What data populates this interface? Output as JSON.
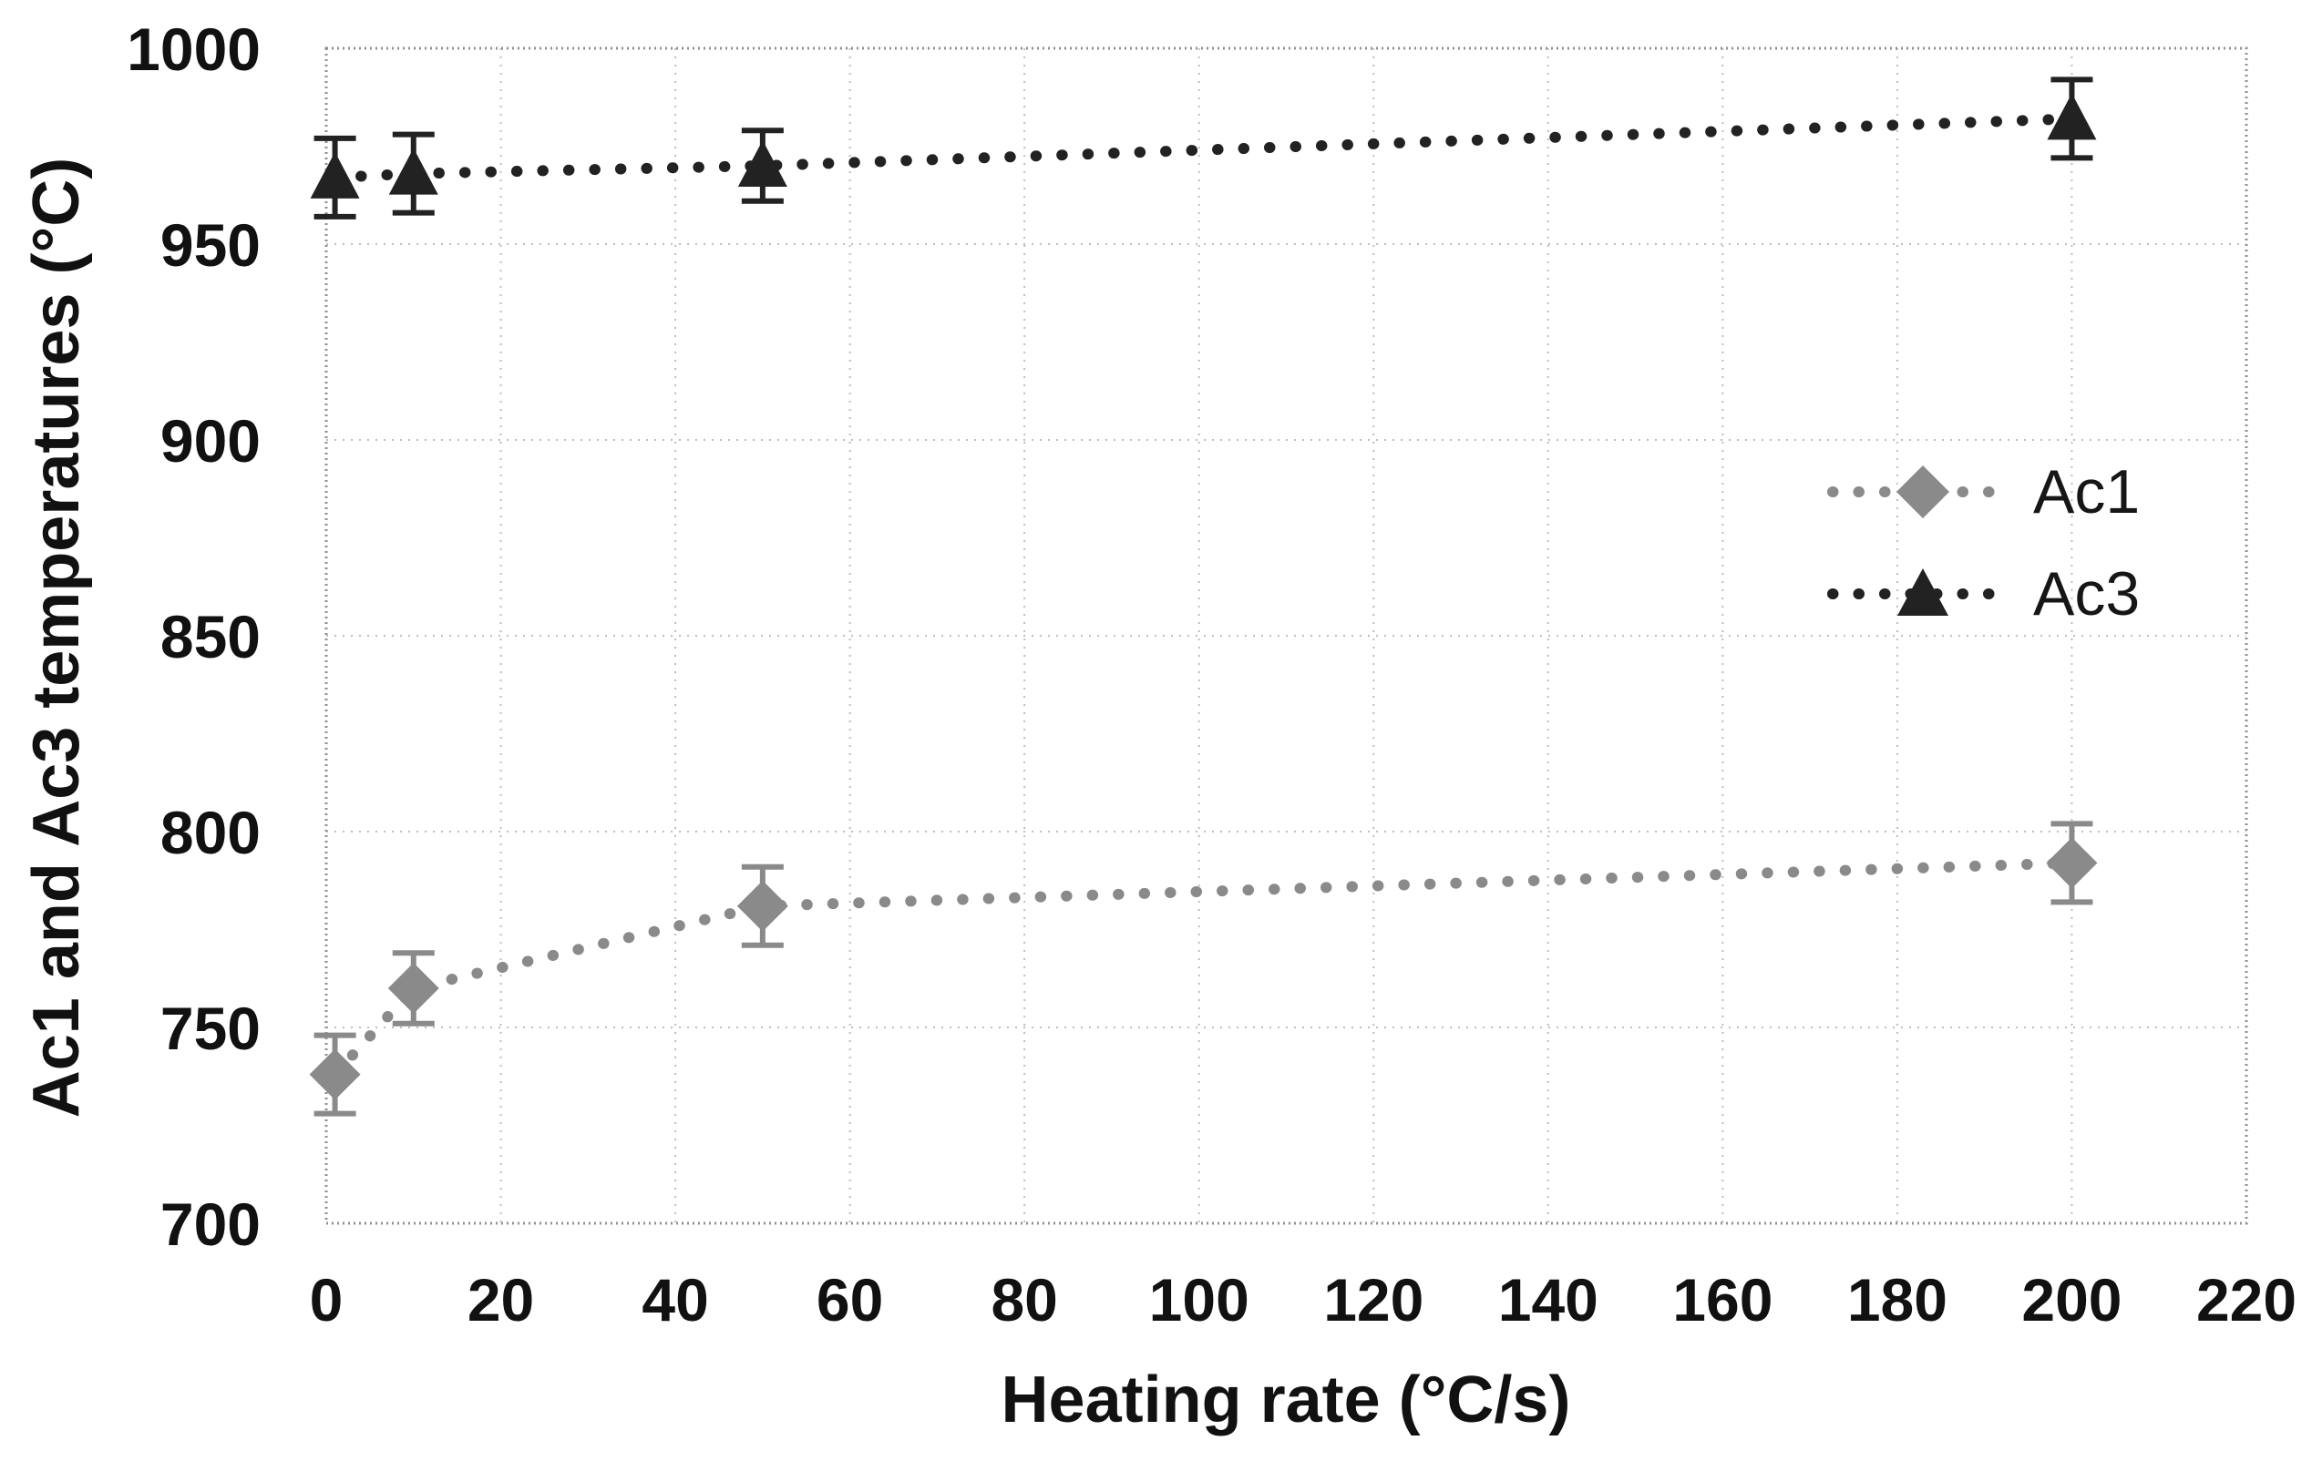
{
  "figure": {
    "background": "#ffffff",
    "text_color": "#111111",
    "grid_color": "#bdbdbd",
    "border_color": "#909090"
  },
  "chart_data": {
    "type": "scatter",
    "title": "",
    "xlabel": "Heating rate (°C/s)",
    "ylabel": "Ac1 and Ac3 temperatures (°C)",
    "xlim": [
      0,
      220
    ],
    "ylim": [
      700,
      1000
    ],
    "xticks": [
      0,
      20,
      40,
      60,
      80,
      100,
      120,
      140,
      160,
      180,
      200,
      220
    ],
    "yticks": [
      700,
      750,
      800,
      850,
      900,
      950,
      1000
    ],
    "grid": true,
    "legend_position": "inside-right",
    "series": [
      {
        "name": "Ac1",
        "marker": "diamond",
        "color": "#8a8a8a",
        "line_style": "dotted",
        "x": [
          1,
          10,
          50,
          200
        ],
        "y": [
          738,
          760,
          781,
          792
        ],
        "y_err": [
          10,
          9,
          10,
          10
        ]
      },
      {
        "name": "Ac3",
        "marker": "triangle",
        "color": "#222222",
        "line_style": "dotted",
        "x": [
          1,
          10,
          50,
          200
        ],
        "y": [
          967,
          968,
          970,
          982
        ],
        "y_err": [
          10,
          10,
          9,
          10
        ]
      }
    ]
  }
}
